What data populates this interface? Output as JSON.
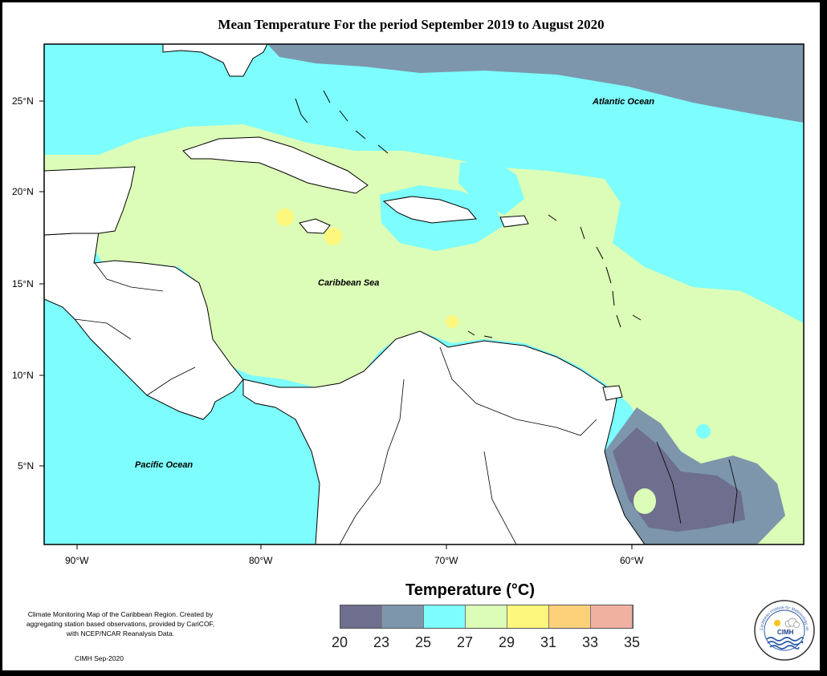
{
  "title": "Mean Temperature For the period September 2019 to August 2020",
  "map": {
    "lon_ticks": [
      "90°W",
      "80°W",
      "70°W",
      "60°W"
    ],
    "lat_ticks": [
      "25°N",
      "20°N",
      "15°N",
      "10°N",
      "5°N"
    ],
    "labels": {
      "atlantic": "Atlantic Ocean",
      "caribbean": "Caribbean Sea",
      "pacific": "Pacific Ocean"
    },
    "colors": {
      "c20_23": "#6e6e8e",
      "c23_25": "#7d96ab",
      "c25_27": "#7dfdfd",
      "c27_29": "#dcfdb7",
      "c29_31": "#fdf87d",
      "c31_33": "#fdd07a",
      "c33_35": "#f0b1a1",
      "land": "#ffffff"
    }
  },
  "legend": {
    "title": "Temperature (°C)",
    "ticks": [
      "20",
      "23",
      "25",
      "27",
      "29",
      "31",
      "33",
      "35"
    ],
    "swatches": [
      "#6e6e8e",
      "#7d96ab",
      "#7dfdfd",
      "#dcfdb7",
      "#fdf87d",
      "#fdd07a",
      "#f0b1a1"
    ]
  },
  "note": "Climate Monitoring Map of the Caribbean Region. Created by aggregating station based observations, provided by CariCOF, with NCEP/NCAR Reanalysis Data.",
  "credit": "CIMH Sep-2020",
  "logo": {
    "arc_text": "Caribbean Institute for Meteorology and Hydrology",
    "abbr": "CIMH"
  }
}
